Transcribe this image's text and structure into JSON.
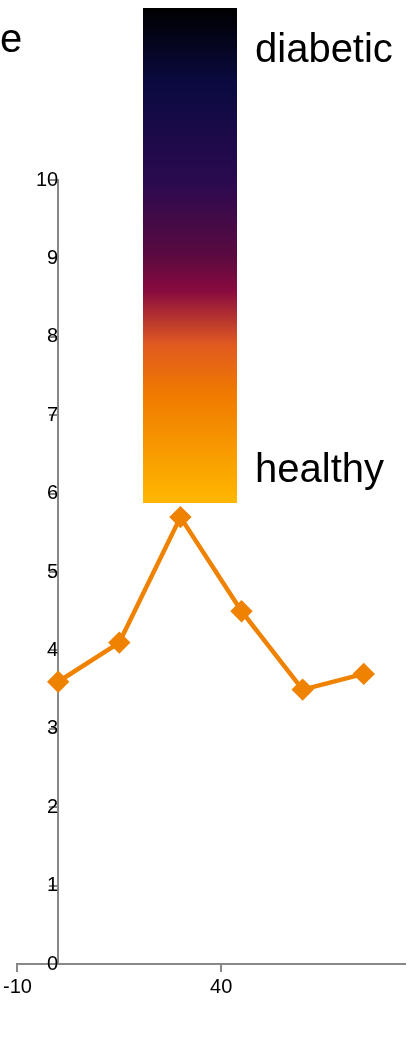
{
  "chart_data": {
    "type": "line",
    "x": [
      0,
      15,
      30,
      45,
      60,
      75
    ],
    "series": [
      {
        "color": "#ef8200",
        "values": [
          3.6,
          4.1,
          5.7,
          4.5,
          3.5,
          3.7
        ]
      }
    ],
    "xlim": [
      -10,
      85
    ],
    "xticks": [
      -10,
      40
    ],
    "ylim": [
      0,
      10
    ],
    "yticks": [
      0,
      1,
      2,
      3,
      4,
      5,
      6,
      7,
      8,
      9,
      10
    ],
    "grid": false,
    "legend": false,
    "marker": "diamond",
    "line_style": "solid",
    "annotations": [
      "e",
      "diabetic",
      "healthy"
    ]
  }
}
